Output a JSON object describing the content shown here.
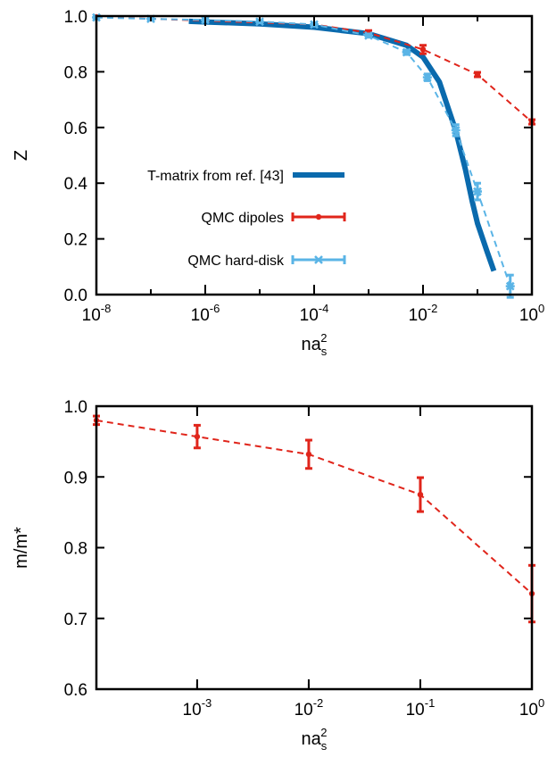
{
  "chart_data": [
    {
      "type": "line",
      "x_scale": "log",
      "xlim": [
        1e-08,
        1
      ],
      "ylim": [
        0,
        1
      ],
      "xlabel": "na_s^2",
      "xlabel_parts": {
        "base": "na",
        "sub": "s",
        "sup": "2"
      },
      "ylabel": "Z",
      "x_ticks": [
        {
          "base": "10",
          "exp": "-8"
        },
        {
          "base": "10",
          "exp": "-6"
        },
        {
          "base": "10",
          "exp": "-4"
        },
        {
          "base": "10",
          "exp": "-2"
        },
        {
          "base": "10",
          "exp": "0"
        }
      ],
      "y_ticks": [
        "0.0",
        "0.2",
        "0.4",
        "0.6",
        "0.8",
        "1.0"
      ],
      "legend_position": "center-left",
      "series": [
        {
          "name": "T-matrix from ref. [43]",
          "style": "thick-solid",
          "color": "#0a6aad",
          "x": [
            5e-07,
            1e-06,
            1e-05,
            0.0001,
            0.001,
            0.005,
            0.01,
            0.02,
            0.04,
            0.06,
            0.08,
            0.1,
            0.15,
            0.2
          ],
          "y": [
            0.981,
            0.979,
            0.972,
            0.96,
            0.937,
            0.895,
            0.853,
            0.763,
            0.588,
            0.449,
            0.335,
            0.256,
            0.155,
            0.085
          ]
        },
        {
          "name": "QMC dipoles",
          "style": "dashed-points-errorbars",
          "color": "#e0251b",
          "x": [
            1e-08,
            0.0001,
            0.001,
            0.01,
            0.1,
            1.0
          ],
          "y": [
            0.997,
            0.97,
            0.94,
            0.88,
            0.79,
            0.62
          ],
          "err": [
            0.004,
            0.004,
            0.008,
            0.015,
            0.008,
            0.008
          ]
        },
        {
          "name": "QMC hard-disk",
          "style": "dashed-points-errorbars",
          "color": "#5ab4e6",
          "x": [
            1e-08,
            1e-07,
            1e-06,
            1e-05,
            0.0001,
            0.001,
            0.005,
            0.012,
            0.04,
            0.1,
            0.4
          ],
          "y": [
            0.995,
            0.99,
            0.986,
            0.98,
            0.97,
            0.93,
            0.87,
            0.78,
            0.59,
            0.37,
            0.03
          ],
          "err": [
            0.004,
            0.004,
            0.004,
            0.004,
            0.006,
            0.006,
            0.008,
            0.012,
            0.02,
            0.03,
            0.04
          ]
        }
      ]
    },
    {
      "type": "line",
      "x_scale": "log",
      "xlim": [
        0.000125,
        1
      ],
      "ylim": [
        0.6,
        1.0
      ],
      "xlabel": "na_s^2",
      "xlabel_parts": {
        "base": "na",
        "sub": "s",
        "sup": "2"
      },
      "ylabel": "m/m*",
      "x_ticks": [
        {
          "base": "10",
          "exp": "-3"
        },
        {
          "base": "10",
          "exp": "-2"
        },
        {
          "base": "10",
          "exp": "-1"
        },
        {
          "base": "10",
          "exp": "0"
        }
      ],
      "y_ticks": [
        "0.6",
        "0.7",
        "0.8",
        "0.9",
        "1.0"
      ],
      "series": [
        {
          "style": "dashed-points-errorbars",
          "color": "#e0251b",
          "x": [
            0.000125,
            0.001,
            0.01,
            0.1,
            1.0
          ],
          "y": [
            0.98,
            0.957,
            0.932,
            0.875,
            0.735
          ],
          "err": [
            0.006,
            0.016,
            0.02,
            0.024,
            0.04
          ]
        }
      ]
    }
  ]
}
